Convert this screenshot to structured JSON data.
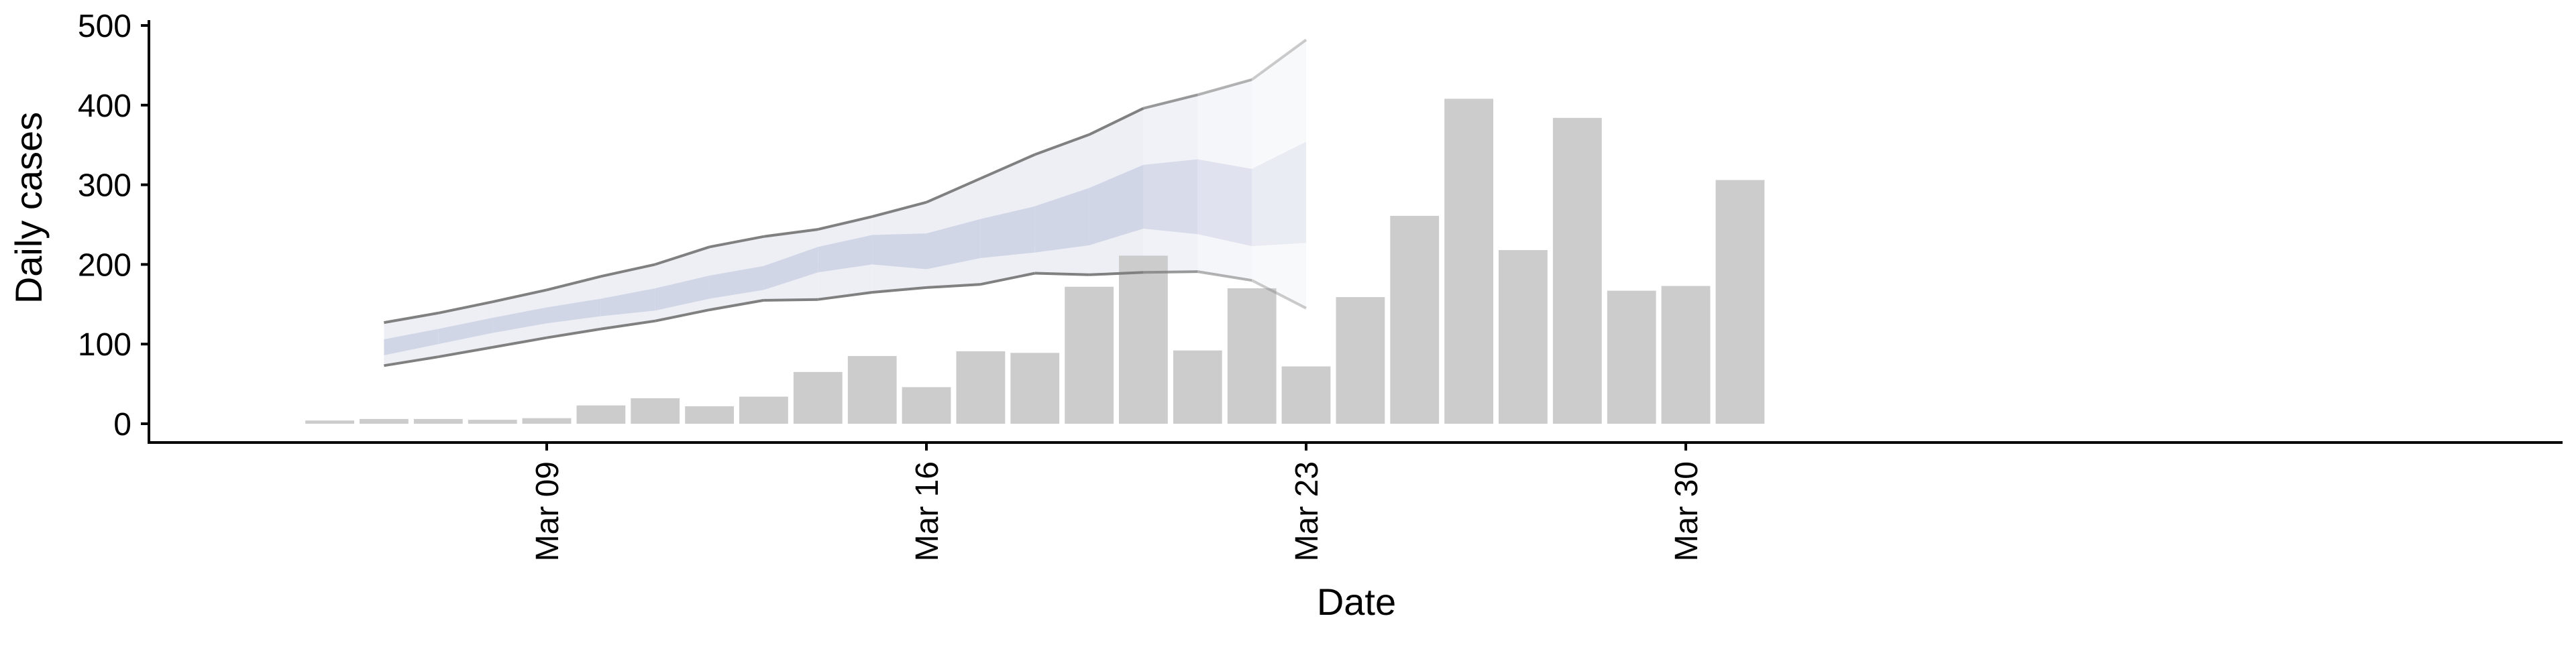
{
  "chart_data": {
    "type": "bar",
    "title": "",
    "xlabel": "Date",
    "ylabel": "Daily cases",
    "ylim": [
      0,
      500
    ],
    "y_ticks": [
      "0",
      "100",
      "200",
      "300",
      "400",
      "500"
    ],
    "x_ticks": [
      {
        "date": "2020-03-09",
        "label": "Mar 09"
      },
      {
        "date": "2020-03-16",
        "label": "Mar 16"
      },
      {
        "date": "2020-03-23",
        "label": "Mar 23"
      },
      {
        "date": "2020-03-30",
        "label": "Mar 30"
      }
    ],
    "grid": false,
    "legend": "none",
    "series": [
      {
        "type": "bar",
        "x": [
          "2020-03-05",
          "2020-03-06",
          "2020-03-07",
          "2020-03-08",
          "2020-03-09",
          "2020-03-10",
          "2020-03-11",
          "2020-03-12",
          "2020-03-13",
          "2020-03-14",
          "2020-03-15",
          "2020-03-16",
          "2020-03-17",
          "2020-03-18",
          "2020-03-19",
          "2020-03-20",
          "2020-03-21",
          "2020-03-22",
          "2020-03-23",
          "2020-03-24",
          "2020-03-25",
          "2020-03-26",
          "2020-03-27",
          "2020-03-28",
          "2020-03-29",
          "2020-03-30",
          "2020-03-31",
          "2020-04-01"
        ],
        "values": [
          4,
          6,
          6,
          5,
          7,
          23,
          32,
          22,
          34,
          65,
          85,
          46,
          91,
          89,
          172,
          211,
          92,
          170,
          72,
          159,
          261,
          408,
          218,
          384,
          167,
          173,
          306,
          0
        ],
        "color": "#cccccc"
      },
      {
        "type": "band",
        "x": [
          "2020-03-06",
          "2020-03-07",
          "2020-03-08",
          "2020-03-09",
          "2020-03-10",
          "2020-03-11",
          "2020-03-12",
          "2020-03-13",
          "2020-03-14",
          "2020-03-15",
          "2020-03-16",
          "2020-03-17",
          "2020-03-18",
          "2020-03-19",
          "2020-03-20",
          "2020-03-21",
          "2020-03-22",
          "2020-03-23"
        ],
        "outer_lower": [
          73,
          84,
          96,
          108,
          119,
          129,
          143,
          155,
          156,
          165,
          171,
          175,
          189,
          187,
          190,
          191,
          180,
          145
        ],
        "outer_upper": [
          127,
          139,
          153,
          168,
          185,
          200,
          222,
          235,
          244,
          260,
          278,
          308,
          338,
          363,
          396,
          413,
          432,
          482
        ],
        "inner_lower": [
          86,
          100,
          114,
          126,
          135,
          142,
          157,
          168,
          190,
          200,
          194,
          208,
          215,
          224,
          245,
          238,
          223,
          227
        ],
        "inner_upper": [
          106,
          119,
          133,
          146,
          157,
          170,
          186,
          198,
          222,
          237,
          239,
          257,
          273,
          296,
          325,
          332,
          320,
          354
        ],
        "outer_color": "#e8eaf2",
        "inner_color": "#c9cfe3",
        "line_color": "#808080"
      }
    ]
  }
}
